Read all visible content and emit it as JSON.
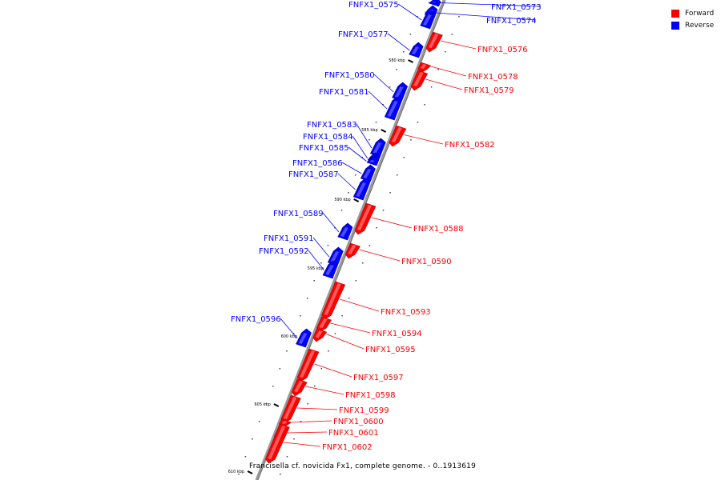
{
  "colors": {
    "forward": "#ff0000",
    "reverse": "#0000ff",
    "backbone": "#999999",
    "tick": "#000000"
  },
  "legend": [
    {
      "label": "Forward",
      "color": "#ff0000"
    },
    {
      "label": "Reverse",
      "color": "#0000ff"
    }
  ],
  "caption": "Francisella cf. novicida Fx1, complete genome. - 0..1913619",
  "ticks": [
    "580 kbp",
    "585 kbp",
    "590 kbp",
    "595 kbp",
    "600 kbp",
    "605 kbp",
    "610 kbp"
  ],
  "genes": [
    {
      "name": "FNFX1_0573",
      "strand": "reverse"
    },
    {
      "name": "FNFX1_0574",
      "strand": "reverse"
    },
    {
      "name": "FNFX1_0575",
      "strand": "reverse"
    },
    {
      "name": "FNFX1_0576",
      "strand": "forward"
    },
    {
      "name": "FNFX1_0577",
      "strand": "reverse"
    },
    {
      "name": "FNFX1_0578",
      "strand": "forward"
    },
    {
      "name": "FNFX1_0579",
      "strand": "forward"
    },
    {
      "name": "FNFX1_0580",
      "strand": "reverse"
    },
    {
      "name": "FNFX1_0581",
      "strand": "reverse"
    },
    {
      "name": "FNFX1_0582",
      "strand": "forward"
    },
    {
      "name": "FNFX1_0583",
      "strand": "reverse"
    },
    {
      "name": "FNFX1_0584",
      "strand": "reverse"
    },
    {
      "name": "FNFX1_0585",
      "strand": "reverse"
    },
    {
      "name": "FNFX1_0586",
      "strand": "reverse"
    },
    {
      "name": "FNFX1_0587",
      "strand": "reverse"
    },
    {
      "name": "FNFX1_0588",
      "strand": "forward"
    },
    {
      "name": "FNFX1_0589",
      "strand": "reverse"
    },
    {
      "name": "FNFX1_0590",
      "strand": "forward"
    },
    {
      "name": "FNFX1_0591",
      "strand": "reverse"
    },
    {
      "name": "FNFX1_0592",
      "strand": "reverse"
    },
    {
      "name": "FNFX1_0593",
      "strand": "forward"
    },
    {
      "name": "FNFX1_0594",
      "strand": "forward"
    },
    {
      "name": "FNFX1_0595",
      "strand": "forward"
    },
    {
      "name": "FNFX1_0596",
      "strand": "reverse"
    },
    {
      "name": "FNFX1_0597",
      "strand": "forward"
    },
    {
      "name": "FNFX1_0598",
      "strand": "forward"
    },
    {
      "name": "FNFX1_0599",
      "strand": "forward"
    },
    {
      "name": "FNFX1_0600",
      "strand": "forward"
    },
    {
      "name": "FNFX1_0601",
      "strand": "forward"
    },
    {
      "name": "FNFX1_0602",
      "strand": "forward"
    }
  ]
}
